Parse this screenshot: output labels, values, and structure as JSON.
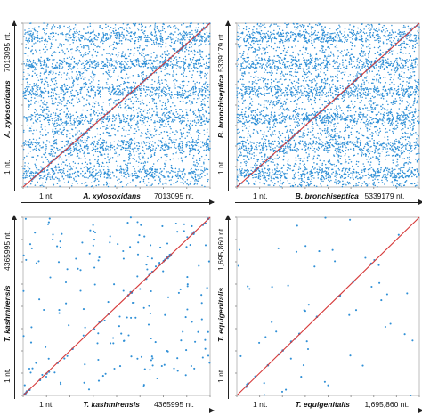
{
  "chart_data": [
    {
      "type": "scatter",
      "subtype": "dot-plot",
      "xlabel": {
        "start": "1 nt.",
        "species": "A. xylosoxidans",
        "end": "7013095 nt."
      },
      "ylabel": {
        "start": "1 nt.",
        "species": "A. xylosoxidans",
        "end": "7013095 nt."
      },
      "xlim": [
        1,
        7013095
      ],
      "ylim": [
        1,
        7013095
      ],
      "dot_color": "#2e8fd6",
      "diagonal_color": "#d63a3a",
      "background_density": "dense",
      "approx_background_dots": 4200,
      "diagonal_dots": 140
    },
    {
      "type": "scatter",
      "subtype": "dot-plot",
      "xlabel": {
        "start": "1 nt.",
        "species": "B. bronchiseptica",
        "end": "5339179 nt."
      },
      "ylabel": {
        "start": "1 nt.",
        "species": "B. bronchiseptica",
        "end": "5339179 nt."
      },
      "xlim": [
        1,
        5339179
      ],
      "ylim": [
        1,
        5339179
      ],
      "dot_color": "#2e8fd6",
      "diagonal_color": "#d63a3a",
      "background_density": "dense",
      "approx_background_dots": 4600,
      "diagonal_dots": 140
    },
    {
      "type": "scatter",
      "subtype": "dot-plot",
      "xlabel": {
        "start": "1 nt.",
        "species": "T. kashmirensis",
        "end": "4365995 nt."
      },
      "ylabel": {
        "start": "1 nt.",
        "species": "T. kashmirensis",
        "end": "4365995 nt."
      },
      "xlim": [
        1,
        4365995
      ],
      "ylim": [
        1,
        4365995
      ],
      "dot_color": "#2e8fd6",
      "diagonal_color": "#d63a3a",
      "background_density": "sparse",
      "approx_background_dots": 190,
      "diagonal_dots": 30
    },
    {
      "type": "scatter",
      "subtype": "dot-plot",
      "xlabel": {
        "start": "1 nt.",
        "species": "T. equigenitalis",
        "end": "1,695,860 nt."
      },
      "ylabel": {
        "start": "1 nt.",
        "species": "T. equigenitalis",
        "end": "1,695,860 nt."
      },
      "xlim": [
        1,
        1695860
      ],
      "ylim": [
        1,
        1695860
      ],
      "dot_color": "#2e8fd6",
      "diagonal_color": "#d63a3a",
      "background_density": "very sparse",
      "approx_background_dots": 55,
      "diagonal_dots": 14
    }
  ]
}
